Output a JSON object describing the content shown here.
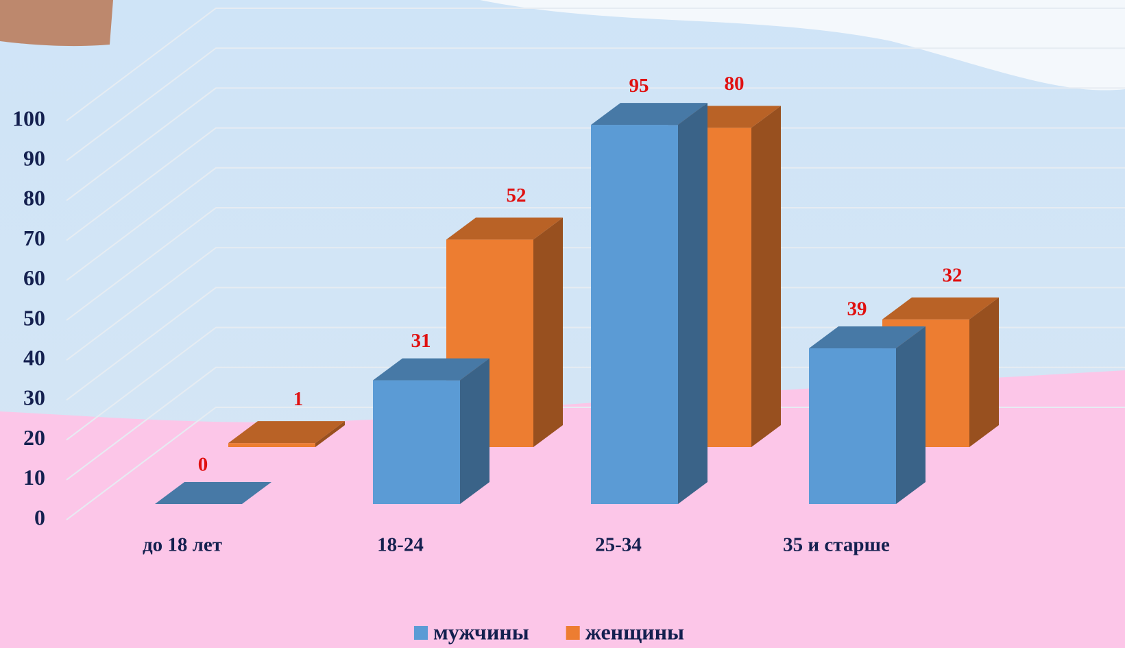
{
  "chart_data": {
    "type": "bar",
    "categories": [
      "до 18 лет",
      "18-24",
      "25-34",
      "35 и старше"
    ],
    "series": [
      {
        "name": "мужчины",
        "color": "#5b9bd5",
        "values": [
          0,
          31,
          95,
          39
        ]
      },
      {
        "name": "женщины",
        "color": "#ed7d31",
        "values": [
          1,
          52,
          80,
          32
        ]
      }
    ],
    "ylim": [
      0,
      100
    ],
    "yticks": [
      0,
      10,
      20,
      30,
      40,
      50,
      60,
      70,
      80,
      90,
      100
    ],
    "grid": true,
    "legend": "bottom"
  }
}
